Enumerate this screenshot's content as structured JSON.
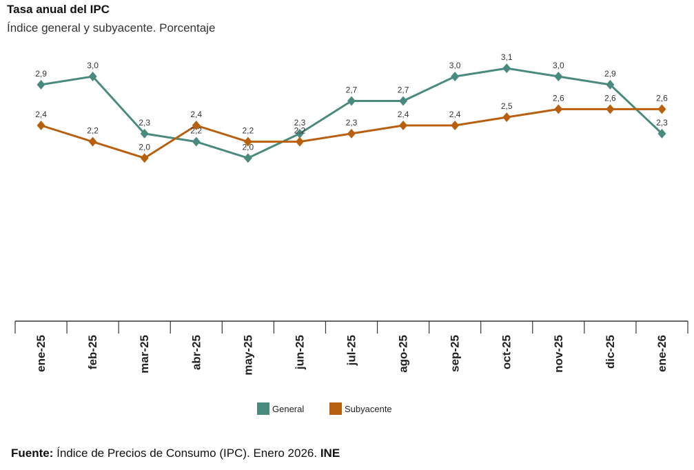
{
  "header": {
    "title": "Tasa anual del IPC",
    "subtitle": "Índice general y subyacente. Porcentaje"
  },
  "footer": {
    "label": "Fuente:",
    "text": " Índice de Precios de Consumo (IPC).  Enero 2026. ",
    "org": "INE"
  },
  "colors": {
    "general": "#4a8a7e",
    "subyacente": "#b8600f",
    "axis": "#333333"
  },
  "chart_data": {
    "type": "line",
    "title": "Tasa anual del IPC",
    "subtitle": "Índice general y subyacente. Porcentaje",
    "categories": [
      "ene-25",
      "feb-25",
      "mar-25",
      "abr-25",
      "may-25",
      "jun-25",
      "jul-25",
      "ago-25",
      "sep-25",
      "oct-25",
      "nov-25",
      "dic-25",
      "ene-26"
    ],
    "series": [
      {
        "name": "General",
        "values": [
          2.9,
          3.0,
          2.3,
          2.2,
          2.0,
          2.3,
          2.7,
          2.7,
          3.0,
          3.1,
          3.0,
          2.9,
          2.3
        ],
        "labels": [
          "2,9",
          "3,0",
          "2,3",
          "2,2",
          "2,0",
          "2,3",
          "2,7",
          "2,7",
          "3,0",
          "3,1",
          "3,0",
          "2,9",
          "2,3"
        ]
      },
      {
        "name": "Subyacente",
        "values": [
          2.4,
          2.2,
          2.0,
          2.4,
          2.2,
          2.2,
          2.3,
          2.4,
          2.4,
          2.5,
          2.6,
          2.6,
          2.6
        ],
        "labels": [
          "2,4",
          "2,2",
          "2,0",
          "2,4",
          "2,2",
          "2,2",
          "2,3",
          "2,4",
          "2,4",
          "2,5",
          "2,6",
          "2,6",
          "2,6"
        ]
      }
    ],
    "xlabel": "",
    "ylabel": "",
    "ylim": [
      0,
      3.6
    ],
    "grid": false,
    "legend": "bottom-center"
  }
}
